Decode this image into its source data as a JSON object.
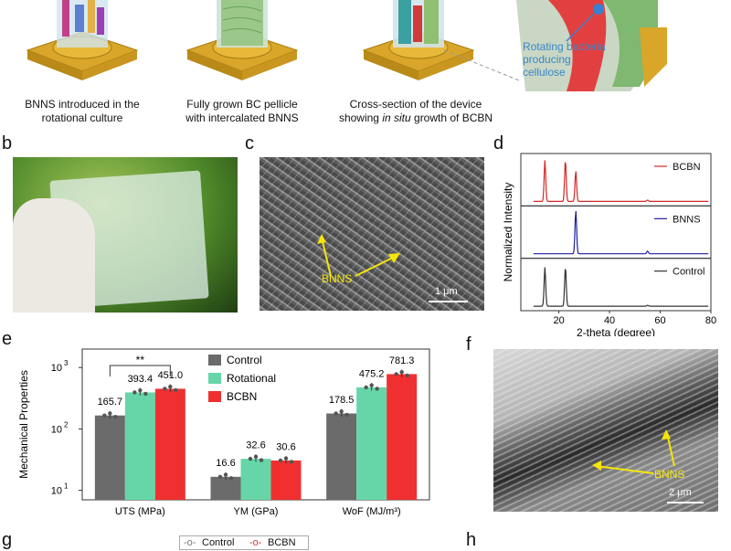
{
  "panel_a": {
    "captions": [
      "BNNS introduced in the",
      "rotational culture",
      "Fully grown BC pellicle",
      "with intercalated BNNS",
      "Cross-section of the device",
      "showing",
      "in situ",
      "growth of BCBN"
    ],
    "inset_label_lines": [
      "Rotating bacteria",
      "producing",
      "cellulose"
    ]
  },
  "panel_letters": [
    "b",
    "c",
    "d",
    "e",
    "f",
    "g",
    "h"
  ],
  "panel_c": {
    "arrow_label": "BNNS",
    "scale_bar": "1 μm"
  },
  "panel_f": {
    "arrow_label": "BNNS",
    "scale_bar": "2 μm"
  },
  "panel_g_legend": [
    "Control",
    "BCBN"
  ],
  "chart_d": {
    "type": "line",
    "xlabel": "2-theta (degree)",
    "ylabel": "Normalized Intensity",
    "xlim": [
      5,
      80
    ],
    "xticks": [
      20,
      40,
      60,
      80
    ],
    "series": [
      {
        "name": "BCBN",
        "color": "#d62728",
        "peaks": [
          [
            14.5,
            0.95
          ],
          [
            22.6,
            0.95
          ],
          [
            26.7,
            0.7
          ],
          [
            55,
            0.03
          ]
        ]
      },
      {
        "name": "BNNS",
        "color": "#1f1f9f",
        "peaks": [
          [
            26.7,
            1.0
          ],
          [
            55,
            0.06
          ]
        ]
      },
      {
        "name": "Control",
        "color": "#333333",
        "peaks": [
          [
            14.5,
            0.9
          ],
          [
            22.6,
            0.9
          ],
          [
            55,
            0.02
          ]
        ]
      }
    ]
  },
  "chart_e": {
    "type": "bar",
    "ylabel": "Mechanical Properties",
    "yscale": "log",
    "ylim": [
      7,
      2000
    ],
    "yticks": [
      "10",
      "10",
      "10"
    ],
    "ytick_exp": [
      "1",
      "2",
      "3"
    ],
    "ytick_values": [
      10,
      100,
      1000
    ],
    "categories": [
      "UTS (MPa)",
      "YM (GPa)",
      "WoF (MJ/m³)"
    ],
    "series": [
      {
        "name": "Control",
        "color": "#6b6b6b",
        "values": [
          165.7,
          16.6,
          178.5
        ],
        "labels": [
          "165.7",
          "16.6",
          "178.5"
        ]
      },
      {
        "name": "Rotational",
        "color": "#66d6a8",
        "values": [
          393.4,
          32.6,
          475.2
        ],
        "labels": [
          "393.4",
          "32.6",
          "475.2"
        ]
      },
      {
        "name": "BCBN",
        "color": "#f03030",
        "values": [
          451.0,
          30.6,
          781.3
        ],
        "labels": [
          "451.0",
          "30.6",
          "781.3"
        ]
      }
    ],
    "significance": "**"
  }
}
